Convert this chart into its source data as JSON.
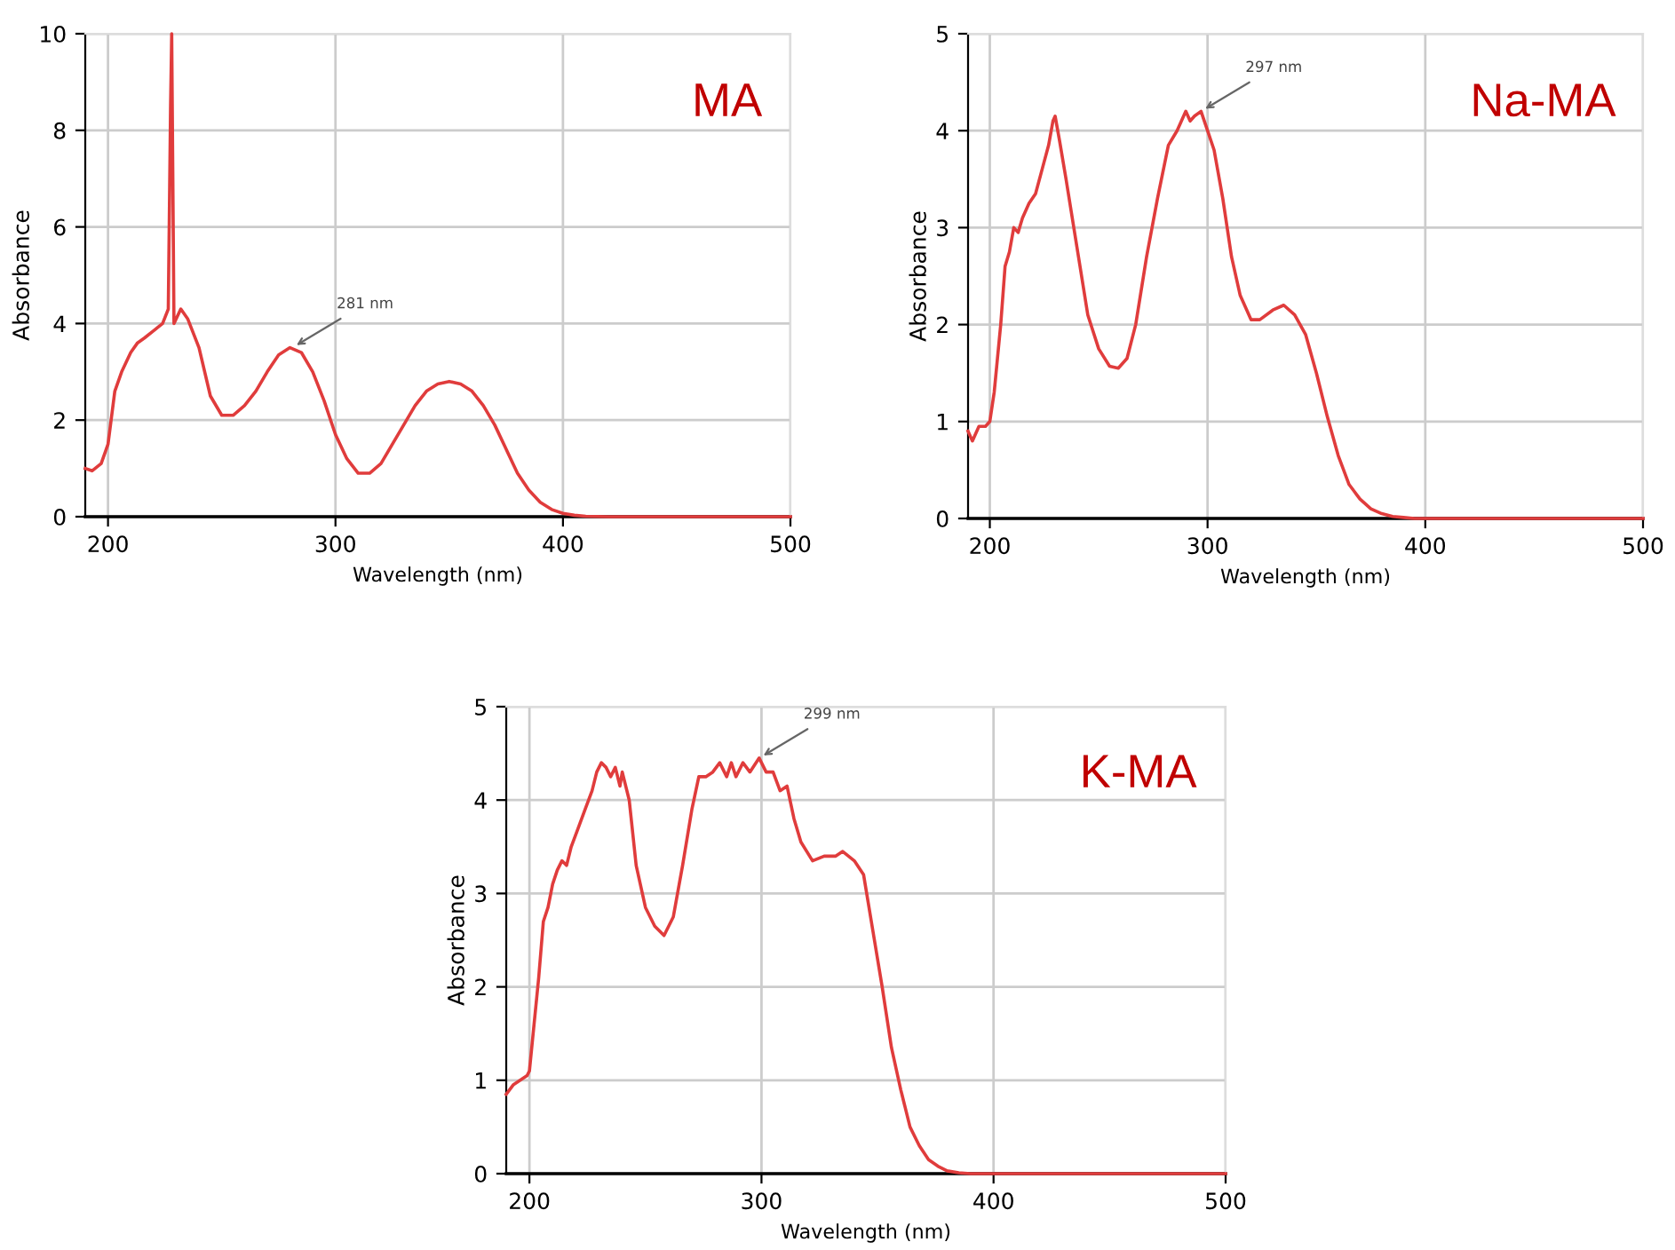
{
  "chart_data": [
    {
      "type": "line",
      "title": "MA",
      "xlabel": "Wavelength (nm)",
      "ylabel": "Absorbance",
      "xlim": [
        190,
        500
      ],
      "ylim": [
        0,
        10
      ],
      "xticks": [
        200,
        300,
        400,
        500
      ],
      "yticks": [
        0,
        2,
        4,
        6,
        8,
        10
      ],
      "grid": true,
      "legend": false,
      "marker": "none",
      "line_style": "solid",
      "annotations": [
        {
          "text": "281 nm",
          "x": 281,
          "y": 3.5
        }
      ],
      "series": [
        {
          "color": "#e03c3c",
          "x": [
            190,
            193,
            197,
            200,
            203,
            206,
            210,
            213,
            216,
            220,
            224,
            226.5,
            227.5,
            228,
            228.5,
            229,
            230,
            232,
            235,
            240,
            245,
            250,
            255,
            260,
            265,
            270,
            275,
            280,
            285,
            290,
            295,
            300,
            305,
            310,
            315,
            320,
            325,
            330,
            335,
            340,
            345,
            350,
            355,
            360,
            365,
            370,
            375,
            380,
            385,
            390,
            395,
            400,
            405,
            410,
            420,
            500
          ],
          "values": [
            1.0,
            0.95,
            1.1,
            1.5,
            2.6,
            3.0,
            3.4,
            3.6,
            3.7,
            3.85,
            4.0,
            4.3,
            8.5,
            10.0,
            7.0,
            4.0,
            4.1,
            4.3,
            4.1,
            3.5,
            2.5,
            2.1,
            2.1,
            2.3,
            2.6,
            3.0,
            3.35,
            3.5,
            3.4,
            3.0,
            2.4,
            1.7,
            1.2,
            0.9,
            0.9,
            1.1,
            1.5,
            1.9,
            2.3,
            2.6,
            2.75,
            2.8,
            2.75,
            2.6,
            2.3,
            1.9,
            1.4,
            0.9,
            0.55,
            0.3,
            0.15,
            0.07,
            0.03,
            0.01,
            0,
            0
          ]
        }
      ]
    },
    {
      "type": "line",
      "title": "Na-MA",
      "xlabel": "Wavelength (nm)",
      "ylabel": "Absorbance",
      "xlim": [
        190,
        500
      ],
      "ylim": [
        0,
        5
      ],
      "xticks": [
        200,
        300,
        400,
        500
      ],
      "yticks": [
        0,
        1,
        2,
        3,
        4,
        5
      ],
      "grid": true,
      "legend": false,
      "marker": "none",
      "line_style": "solid",
      "annotations": [
        {
          "text": "297 nm",
          "x": 297,
          "y": 4.2
        }
      ],
      "series": [
        {
          "color": "#e03c3c",
          "x": [
            190,
            192,
            195,
            198,
            200,
            202,
            205,
            207,
            209,
            211,
            213,
            215,
            218,
            221,
            224,
            227,
            229,
            230,
            232,
            235,
            240,
            245,
            250,
            255,
            259,
            263,
            267,
            272,
            277,
            282,
            286,
            288,
            290,
            292,
            294,
            297,
            300,
            303,
            307,
            311,
            315,
            320,
            324,
            330,
            335,
            340,
            345,
            350,
            355,
            360,
            365,
            370,
            375,
            380,
            385,
            390,
            395,
            500
          ],
          "values": [
            0.9,
            0.8,
            0.95,
            0.95,
            1.0,
            1.3,
            2.0,
            2.6,
            2.75,
            3.0,
            2.95,
            3.1,
            3.25,
            3.35,
            3.6,
            3.85,
            4.1,
            4.15,
            3.9,
            3.5,
            2.8,
            2.1,
            1.75,
            1.57,
            1.55,
            1.65,
            2.0,
            2.7,
            3.3,
            3.85,
            4.0,
            4.1,
            4.2,
            4.1,
            4.15,
            4.2,
            4.0,
            3.8,
            3.3,
            2.7,
            2.3,
            2.05,
            2.05,
            2.15,
            2.2,
            2.1,
            1.9,
            1.5,
            1.05,
            0.65,
            0.35,
            0.2,
            0.1,
            0.05,
            0.02,
            0.01,
            0,
            0
          ]
        }
      ]
    },
    {
      "type": "line",
      "title": "K-MA",
      "xlabel": "Wavelength (nm)",
      "ylabel": "Absorbance",
      "xlim": [
        190,
        500
      ],
      "ylim": [
        0,
        5
      ],
      "xticks": [
        200,
        300,
        400,
        500
      ],
      "yticks": [
        0,
        1,
        2,
        3,
        4,
        5
      ],
      "grid": true,
      "legend": false,
      "marker": "none",
      "line_style": "solid",
      "annotations": [
        {
          "text": "299 nm",
          "x": 299,
          "y": 4.45
        }
      ],
      "series": [
        {
          "color": "#e03c3c",
          "x": [
            190,
            193,
            196,
            199,
            200,
            202,
            204,
            206,
            208,
            210,
            212,
            214,
            216,
            218,
            221,
            224,
            227,
            229,
            231,
            233,
            235,
            237,
            239,
            240,
            243,
            246,
            250,
            254,
            258,
            262,
            266,
            270,
            273,
            276,
            279,
            282,
            285,
            287,
            289,
            292,
            295,
            299,
            302,
            305,
            308,
            311,
            314,
            317,
            322,
            327,
            332,
            335,
            340,
            344,
            348,
            352,
            356,
            360,
            364,
            368,
            372,
            376,
            380,
            385,
            390,
            500
          ],
          "values": [
            0.85,
            0.95,
            1.0,
            1.05,
            1.1,
            1.6,
            2.1,
            2.7,
            2.85,
            3.1,
            3.25,
            3.35,
            3.3,
            3.5,
            3.7,
            3.9,
            4.1,
            4.3,
            4.4,
            4.35,
            4.25,
            4.35,
            4.15,
            4.3,
            4.0,
            3.3,
            2.85,
            2.65,
            2.55,
            2.75,
            3.3,
            3.9,
            4.25,
            4.25,
            4.3,
            4.4,
            4.25,
            4.4,
            4.25,
            4.4,
            4.3,
            4.45,
            4.3,
            4.3,
            4.1,
            4.15,
            3.8,
            3.55,
            3.35,
            3.4,
            3.4,
            3.45,
            3.35,
            3.2,
            2.6,
            2.0,
            1.35,
            0.9,
            0.5,
            0.3,
            0.15,
            0.08,
            0.03,
            0.01,
            0,
            0
          ]
        }
      ]
    }
  ]
}
